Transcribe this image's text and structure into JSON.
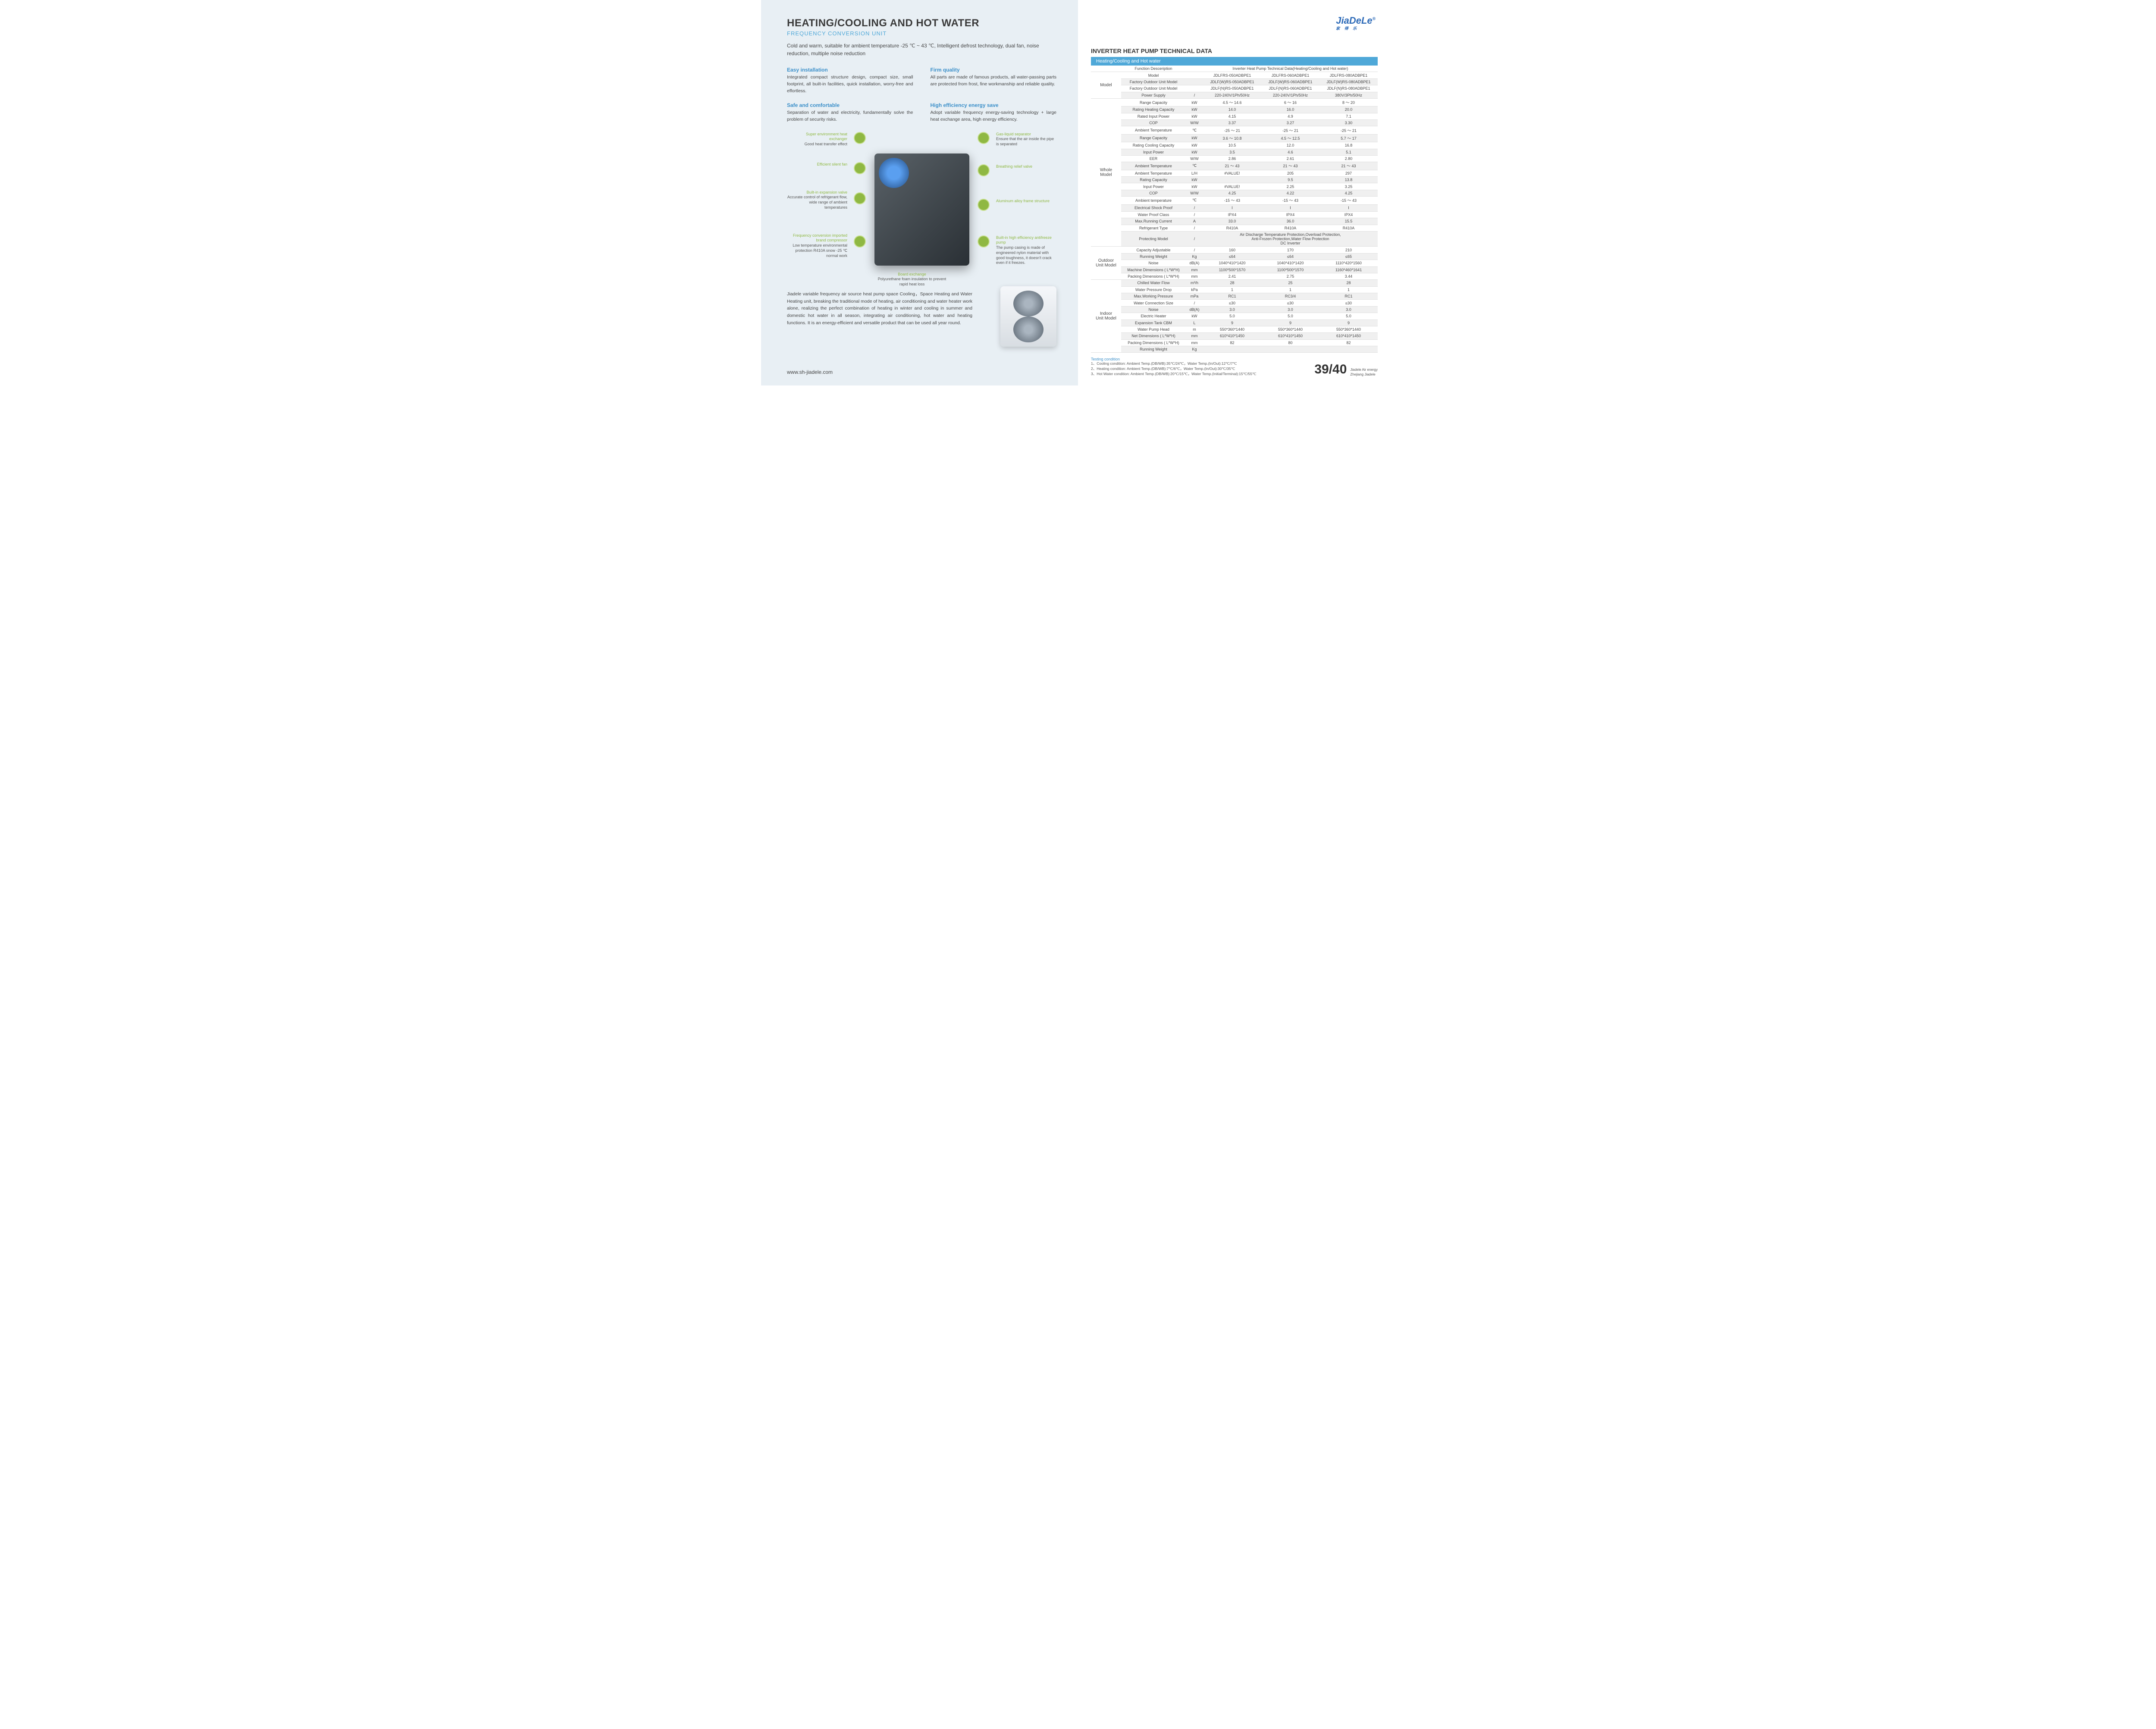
{
  "left": {
    "title": "HEATING/COOLING AND HOT WATER",
    "subtitle": "FREQUENCY CONVERSION UNIT",
    "intro": "Cold and warm, suitable for ambient temperature -25 ℃ ~ 43 ℃, Intelligent defrost technology, dual fan, noise reduction, multiple noise reduction",
    "features": [
      {
        "title": "Easy installation",
        "body": "Integrated compact structure design, compact size, small footprint, all built-in facilities, quick installation, worry-free and effortless."
      },
      {
        "title": "Firm quality",
        "body": "All parts are made of famous products, all water-passing parts are protected from frost, fine workmanship and reliable quality."
      },
      {
        "title": "Safe and comfortable",
        "body": "Separation of water and electricity, fundamentally solve the problem of security risks."
      },
      {
        "title": "High efficiency energy save",
        "body": "Adopt variable frequency energy-saving technology + large heat exchange area, high energy efficiency."
      }
    ],
    "callouts": {
      "l1": {
        "t": "Super environment heat exchanger",
        "b": "Good heat transfer effect"
      },
      "l2": {
        "t": "Efficient silent fan",
        "b": ""
      },
      "l3": {
        "t": "Built-in expansion valve",
        "b": "Accurate control of refrigerant flow, wide range of ambient temperatures"
      },
      "l4": {
        "t": "Frequency conversion imported brand compressor",
        "b": "Low temperature environmental protection R410A snow -25 ℃ normal work"
      },
      "r1": {
        "t": "Gas-liquid separator",
        "b": "Ensure that the air inside the pipe is separated"
      },
      "r2": {
        "t": "Breathing relief valve",
        "b": ""
      },
      "r3": {
        "t": "Aluminum alloy frame structure",
        "b": ""
      },
      "r4": {
        "t": "Built-in high efficiency antifreeze pump",
        "b": "The pump casing is made of engineered nylon material with good toughness, it doesn't crack even if it freezes."
      },
      "bc": {
        "t": "Board exchange",
        "b": "Polyurethane foam insulation to prevent rapid heat loss"
      }
    },
    "desc": "Jiadele variable frequency air source heat pump space Cooling，Space Heating and Water Heating unit, breaking the traditional mode of heating, air conditioning and water heater work alone, realizing the perfect combination of heating in winter and cooling in summer and domestic hot water in all season, integrating air conditioning, hot water and heating functions. It is an energy-efficient and versatile product that can be used all year round.",
    "url": "www.sh-jiadele.com"
  },
  "right": {
    "logo": "JiaDeLe",
    "logo_sub": "家 得 乐",
    "tech_title": "INVERTER HEAT PUMP TECHNICAL DATA",
    "bar": "Heating/Cooling and Hot water",
    "header_label": "Function Desceription",
    "header_right": "Inverter Heat Pump Technical Data(Heating/Cooling and Hot water)",
    "sections": [
      {
        "label": "Model",
        "rows": [
          {
            "p": "Model",
            "u": "",
            "v": [
              "JDLFRS-050ADBPE1",
              "JDLFRS-060ADBPE1",
              "JDLFRS-080ADBPE1"
            ]
          },
          {
            "p": "Factory Outdoor Unit Model",
            "u": "",
            "v": [
              "JDLF(W)RS-050ADBPE1",
              "JDLF(W)RS-060ADBPE1",
              "JDLF(W)RS-080ADBPE1"
            ]
          },
          {
            "p": "Factory Outdoor Unit Model",
            "u": "",
            "v": [
              "JDLF(N)RS-050ADBPE1",
              "JDLF(N)RS-060ADBPE1",
              "JDLF(N)RS-080ADBPE1"
            ]
          },
          {
            "p": "Power Supply",
            "u": "/",
            "v": [
              "220-240V/1Ph/50Hz",
              "220-240V/1Ph/50Hz",
              "380V/3Ph/50Hz"
            ]
          }
        ]
      },
      {
        "label": "Whole Model",
        "rows": [
          {
            "p": "Range Capacity",
            "u": "kW",
            "v": [
              "4.5 ～ 14.6",
              "6 ～ 16",
              "8 ～ 20"
            ]
          },
          {
            "p": "Rating Heating Capacity",
            "u": "kW",
            "v": [
              "14.0",
              "16.0",
              "20.0"
            ]
          },
          {
            "p": "Rated Input Power",
            "u": "kW",
            "v": [
              "4.15",
              "4.9",
              "7.1"
            ]
          },
          {
            "p": "COP",
            "u": "W/W",
            "v": [
              "3.37",
              "3.27",
              "3.30"
            ]
          },
          {
            "p": "Ambient Temperature",
            "u": "℃",
            "v": [
              "-25 ～ 21",
              "-25 ～ 21",
              "-25 ～ 21"
            ]
          },
          {
            "p": "Range Capacity",
            "u": "kW",
            "v": [
              "3.6 ～ 10.8",
              "4.5 ～ 12.5",
              "5.7 ～ 17"
            ]
          },
          {
            "p": "Rating Cooling Capacity",
            "u": "kW",
            "v": [
              "10.5",
              "12.0",
              "16.8"
            ]
          },
          {
            "p": "Input Power",
            "u": "kW",
            "v": [
              "3.5",
              "4.6",
              "5.1"
            ]
          },
          {
            "p": "EER",
            "u": "W/W",
            "v": [
              "2.86",
              "2.61",
              "2.80"
            ]
          },
          {
            "p": "Ambient Temperature",
            "u": "℃",
            "v": [
              "21 ～ 43",
              "21 ～ 43",
              "21 ～ 43"
            ]
          },
          {
            "p": "Ambient Temperature",
            "u": "L/H",
            "v": [
              "#VALUE!",
              "205",
              "297"
            ]
          },
          {
            "p": "Rating Capacity",
            "u": "kW",
            "v": [
              "",
              "9.5",
              "13.8"
            ]
          },
          {
            "p": "Input Power",
            "u": "kW",
            "v": [
              "#VALUE!",
              "2.25",
              "3.25"
            ]
          },
          {
            "p": "COP",
            "u": "W/W",
            "v": [
              "4.25",
              "4.22",
              "4.25"
            ]
          },
          {
            "p": "Ambient temperature",
            "u": "℃",
            "v": [
              "-15 ～ 43",
              "-15 ～ 43",
              "-15 ～ 43"
            ]
          },
          {
            "p": "Electrical Shock Proof",
            "u": "/",
            "v": [
              "Ⅰ",
              "Ⅰ",
              "Ⅰ"
            ]
          },
          {
            "p": "Water Proof Class",
            "u": "/",
            "v": [
              "IPX4",
              "IPX4",
              "IPX4"
            ]
          },
          {
            "p": "Max.Running Current",
            "u": "A",
            "v": [
              "33.0",
              "36.0",
              "15.5"
            ]
          },
          {
            "p": "Refrigerant Type",
            "u": "/",
            "v": [
              "R410A",
              "R410A",
              "R410A"
            ]
          },
          {
            "p": "Protecting Model",
            "u": "/",
            "span": "Air Discharge Temperature Protection,Overload Protection,\nAnti-Frozen Protection,Water Flow Protection\nDC Inverter"
          }
        ]
      },
      {
        "label": "Outdoor Unit Model",
        "rows": [
          {
            "p": "Capacity Adjustable",
            "u": "/",
            "v": [
              "160",
              "170",
              "210"
            ]
          },
          {
            "p": "Running Weight",
            "u": "Kg",
            "v": [
              "≤64",
              "≤64",
              "≤65"
            ]
          },
          {
            "p": "Noise",
            "u": "dB(A)",
            "v": [
              "1040*410*1420",
              "1040*410*1420",
              "1110*420*1560"
            ]
          },
          {
            "p": "Machine Dimensions ( L*W*H)",
            "u": "mm",
            "v": [
              "1100*500*1570",
              "1100*500*1570",
              "1160*460*1641"
            ]
          },
          {
            "p": "Packing Dimensions ( L*W*H)",
            "u": "mm",
            "v": [
              "2.41",
              "2.75",
              "3.44"
            ]
          }
        ]
      },
      {
        "label": "Indoor Unit Model",
        "rows": [
          {
            "p": "Chilled Water Flow",
            "u": "m³/h",
            "v": [
              "28",
              "25",
              "28"
            ]
          },
          {
            "p": "Water Pressure Drop",
            "u": "kPa",
            "v": [
              "1",
              "1",
              "1"
            ]
          },
          {
            "p": "Max.Working Pressure",
            "u": "mPa",
            "v": [
              "RC1",
              "RC3/4",
              "RC1"
            ]
          },
          {
            "p": "Water Connection Size",
            "u": "/",
            "v": [
              "≤30",
              "≤30",
              "≤30"
            ]
          },
          {
            "p": "Noise",
            "u": "dB(A)",
            "v": [
              "3.0",
              "3.0",
              "3.0"
            ]
          },
          {
            "p": "Electric Heater",
            "u": "kW",
            "v": [
              "5.0",
              "5.0",
              "5.0"
            ]
          },
          {
            "p": "Expansion Tank CBM",
            "u": "L",
            "v": [
              "9",
              "9",
              "9"
            ]
          },
          {
            "p": "Water Pump Head",
            "u": "m",
            "v": [
              "550*360*1440",
              "550*360*1440",
              "550*360*1440"
            ]
          },
          {
            "p": "Net Dimensions ( L*W*H)",
            "u": "mm",
            "v": [
              "610*410*1450",
              "610*410*1450",
              "610*410*1450"
            ]
          },
          {
            "p": "Packing Dimensions ( L*W*H)",
            "u": "mm",
            "v": [
              "82",
              "80",
              "82"
            ]
          },
          {
            "p": "Running Weight",
            "u": "Kg",
            "v": [
              "",
              "",
              ""
            ]
          }
        ]
      }
    ],
    "testing_title": "Testing condition",
    "testing": [
      "1、Cooling condition: Ambient Temp.(DB/WB):35℃/24℃，Water Temp.(In/Out):12℃/7℃",
      "2、Heating condition: Ambient Temp.(DB/WB):7℃/6℃，Water Temp.(In/Out):30℃/35℃",
      "3、Hot Water condition: Ambient Temp.(DB/WB):20℃/15℃，Water Temp.(Initial/Terminal):15℃/55℃"
    ],
    "pagenum": "39/40",
    "pagenum_sub1": "Jiadele Air energy",
    "pagenum_sub2": "Zhejiang Jiadele"
  }
}
